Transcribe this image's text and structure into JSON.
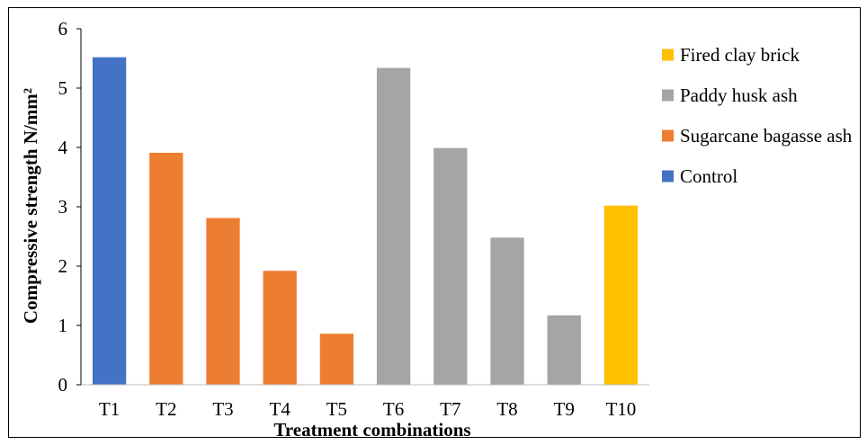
{
  "chart_data": {
    "type": "bar",
    "title": "",
    "xlabel": "Treatment combinations",
    "ylabel": "Compressive strength N/mm²",
    "ylim": [
      0,
      6
    ],
    "yticks": [
      0,
      1,
      2,
      3,
      4,
      5,
      6
    ],
    "grid": false,
    "legend_position": "right",
    "categories": [
      "T1",
      "T2",
      "T3",
      "T4",
      "T5",
      "T6",
      "T7",
      "T8",
      "T9",
      "T10"
    ],
    "values": [
      5.52,
      3.91,
      2.81,
      1.92,
      0.86,
      5.34,
      3.99,
      2.48,
      1.17,
      3.02
    ],
    "bar_groups": [
      "Control",
      "Sugarcane bagasse ash",
      "Sugarcane bagasse ash",
      "Sugarcane bagasse ash",
      "Sugarcane bagasse ash",
      "Paddy husk ash",
      "Paddy husk ash",
      "Paddy husk ash",
      "Paddy husk ash",
      "Fired clay brick"
    ],
    "legend": [
      {
        "name": "Fired clay brick",
        "color": "#FFC000"
      },
      {
        "name": "Paddy husk ash",
        "color": "#A5A5A5"
      },
      {
        "name": "Sugarcane bagasse ash",
        "color": "#ED7D31"
      },
      {
        "name": "Control",
        "color": "#4472C4"
      }
    ]
  }
}
